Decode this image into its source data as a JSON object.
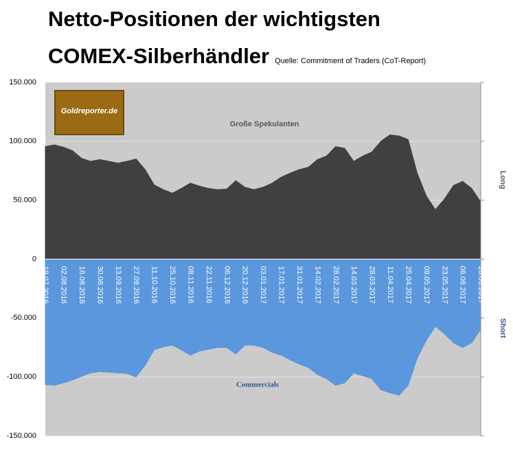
{
  "chart_data": {
    "type": "area",
    "title": "Netto-Positionen der wichtigsten COMEX-Silberhändler",
    "subtitle": "Quelle: Commitment of Traders (CoT-Report)",
    "logo": "Goldreporter.de",
    "y_right_labels": [
      "Long",
      "Short"
    ],
    "categories": [
      "19.07.2016",
      null,
      "02.08.2016",
      null,
      "16.08.2016",
      null,
      "30.08.2016",
      null,
      "13.09.2016",
      null,
      "27.09.2016",
      null,
      "11.10.2016",
      null,
      "25.10.2016",
      null,
      "08.11.2016",
      null,
      "22.11.2016",
      null,
      "06.12.2016",
      null,
      "20.12.2016",
      null,
      "03.01.2017",
      null,
      "17.01.2017",
      null,
      "31.01.2017",
      null,
      "14.02.2017",
      null,
      "28.02.2017",
      null,
      "14.03.2017",
      null,
      "28.03.2017",
      null,
      "11.04.2017",
      null,
      "25.04.2017",
      null,
      "09.05.2017",
      null,
      "23.05.2017",
      null,
      "06.06.2017",
      null,
      "20.06.2017"
    ],
    "series": [
      {
        "name": "Große Spekulanten",
        "color": "#404040",
        "label_color": "#595959",
        "values": [
          95500,
          97000,
          95000,
          92000,
          85500,
          83000,
          84500,
          83000,
          81500,
          83000,
          85000,
          76000,
          63000,
          59000,
          56000,
          60000,
          64500,
          62000,
          60000,
          59000,
          59500,
          66500,
          61000,
          59000,
          61000,
          64500,
          69500,
          73000,
          76000,
          78000,
          84500,
          87500,
          95500,
          94000,
          83000,
          87500,
          91000,
          100000,
          105500,
          104500,
          101500,
          73000,
          53500,
          42000,
          51000,
          62500,
          66000,
          60000,
          48500
        ]
      },
      {
        "name": "Commercials",
        "color": "#5b97dd",
        "label_color": "#2f5597",
        "values": [
          -106500,
          -107000,
          -105000,
          -102500,
          -99500,
          -96500,
          -95500,
          -96000,
          -96500,
          -97000,
          -100000,
          -90000,
          -77000,
          -74500,
          -73000,
          -77000,
          -81500,
          -78000,
          -76500,
          -75000,
          -75000,
          -80500,
          -73000,
          -73000,
          -75000,
          -79000,
          -81500,
          -85500,
          -89000,
          -92000,
          -98000,
          -101500,
          -107000,
          -105000,
          -96500,
          -99000,
          -101500,
          -111000,
          -113500,
          -115500,
          -107000,
          -84000,
          -69000,
          -57000,
          -63500,
          -71000,
          -75000,
          -71000,
          -59500
        ]
      }
    ],
    "ylim": [
      -150000,
      150000
    ],
    "yticks": [
      {
        "value": 150000,
        "label": "150.000"
      },
      {
        "value": 100000,
        "label": "100.000"
      },
      {
        "value": 50000,
        "label": "50.000"
      },
      0,
      {
        "value": -50000,
        "label": "-50.000"
      },
      {
        "value": -100000,
        "label": "-100.000"
      },
      {
        "value": -150000,
        "label": "-150.000"
      }
    ],
    "grid": true
  }
}
